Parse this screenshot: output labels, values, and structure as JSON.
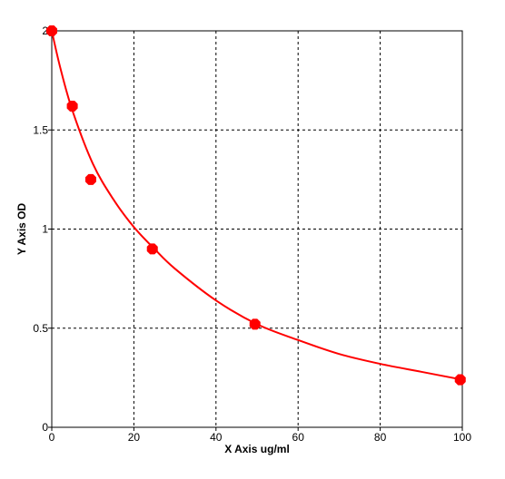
{
  "chart_data": {
    "type": "scatter",
    "title": "",
    "xlabel": "X Axis ug/ml",
    "ylabel": "Y Axis OD",
    "xlim": [
      0,
      100
    ],
    "ylim": [
      0,
      2
    ],
    "x_ticks": [
      {
        "value": 0,
        "label": "0"
      },
      {
        "value": 20,
        "label": "20"
      },
      {
        "value": 40,
        "label": "40"
      },
      {
        "value": 60,
        "label": "60"
      },
      {
        "value": 80,
        "label": "80"
      },
      {
        "value": 100,
        "label": "100"
      }
    ],
    "y_ticks": [
      {
        "value": 0,
        "label": "0"
      },
      {
        "value": 0.5,
        "label": "0.5"
      },
      {
        "value": 1,
        "label": "1"
      },
      {
        "value": 1.5,
        "label": "1.5"
      },
      {
        "value": 2,
        "label": "2"
      }
    ],
    "grid": true,
    "grid_style": "dashed",
    "colors": {
      "series": "#ff0000",
      "axis": "#000000",
      "grid": "#000000",
      "background": "#ffffff"
    },
    "series": [
      {
        "kind": "points",
        "points": [
          {
            "x": 0,
            "y": 2.0
          },
          {
            "x": 5,
            "y": 1.62
          },
          {
            "x": 9.5,
            "y": 1.25
          },
          {
            "x": 24.5,
            "y": 0.9
          },
          {
            "x": 49.5,
            "y": 0.52
          },
          {
            "x": 99.5,
            "y": 0.24
          }
        ]
      },
      {
        "kind": "fit-curve",
        "points": [
          {
            "x": 0,
            "y": 2.0
          },
          {
            "x": 2,
            "y": 1.82
          },
          {
            "x": 5,
            "y": 1.6
          },
          {
            "x": 10,
            "y": 1.33
          },
          {
            "x": 15,
            "y": 1.15
          },
          {
            "x": 20,
            "y": 1.01
          },
          {
            "x": 25,
            "y": 0.9
          },
          {
            "x": 30,
            "y": 0.8
          },
          {
            "x": 40,
            "y": 0.64
          },
          {
            "x": 50,
            "y": 0.52
          },
          {
            "x": 60,
            "y": 0.44
          },
          {
            "x": 70,
            "y": 0.37
          },
          {
            "x": 80,
            "y": 0.32
          },
          {
            "x": 90,
            "y": 0.28
          },
          {
            "x": 100,
            "y": 0.24
          }
        ]
      }
    ]
  }
}
